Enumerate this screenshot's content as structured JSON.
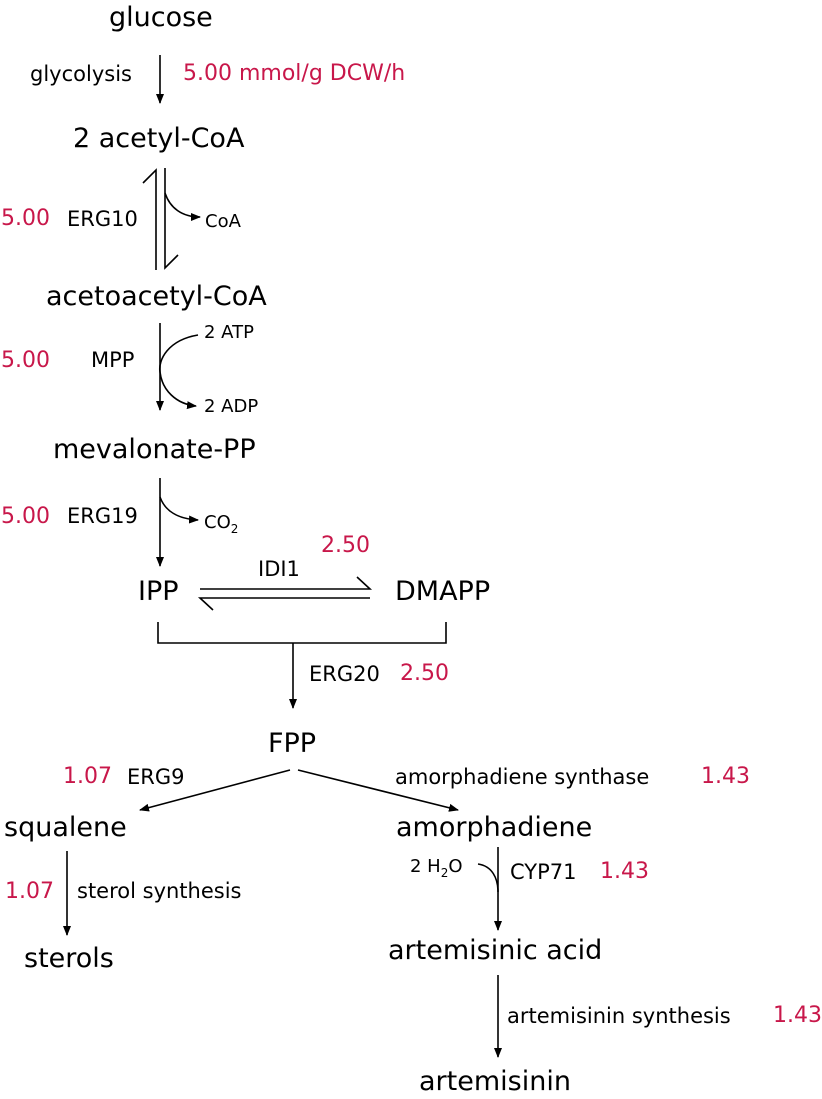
{
  "colors": {
    "flux": "#c8174a",
    "text": "#000000"
  },
  "metabolites": {
    "glucose": "glucose",
    "acetyl_coa": "2 acetyl-CoA",
    "acetoacetyl_coa": "acetoacetyl-CoA",
    "mevalonate_pp": "mevalonate-PP",
    "ipp": "IPP",
    "dmapp": "DMAPP",
    "fpp": "FPP",
    "squalene": "squalene",
    "sterols": "sterols",
    "amorphadiene": "amorphadiene",
    "artemisinic_acid": "artemisinic acid",
    "artemisinin": "artemisinin"
  },
  "reactions": {
    "glycolysis": {
      "label": "glycolysis",
      "flux": "5.00 mmol/g DCW/h"
    },
    "erg10": {
      "label": "ERG10",
      "flux": "5.00",
      "product": "CoA"
    },
    "mpp": {
      "label": "MPP",
      "flux": "5.00",
      "cofactor_in": "2 ATP",
      "cofactor_out": "2 ADP"
    },
    "erg19": {
      "label": "ERG19",
      "flux": "5.00",
      "product_base": "CO",
      "product_sub": "2"
    },
    "idi1": {
      "label": "IDI1",
      "flux": "2.50"
    },
    "erg20": {
      "label": "ERG20",
      "flux": "2.50"
    },
    "erg9": {
      "label": "ERG9",
      "flux": "1.07"
    },
    "sterol_synthesis": {
      "label": "sterol synthesis",
      "flux": "1.07"
    },
    "amorphadiene_synthase": {
      "label": "amorphadiene synthase",
      "flux": "1.43"
    },
    "cyp71": {
      "label": "CYP71",
      "flux": "1.43",
      "cofactor_pre": "2 H",
      "cofactor_sub": "2",
      "cofactor_post": "O"
    },
    "artemisinin_synthesis": {
      "label": "artemisinin synthesis",
      "flux": "1.43"
    }
  }
}
